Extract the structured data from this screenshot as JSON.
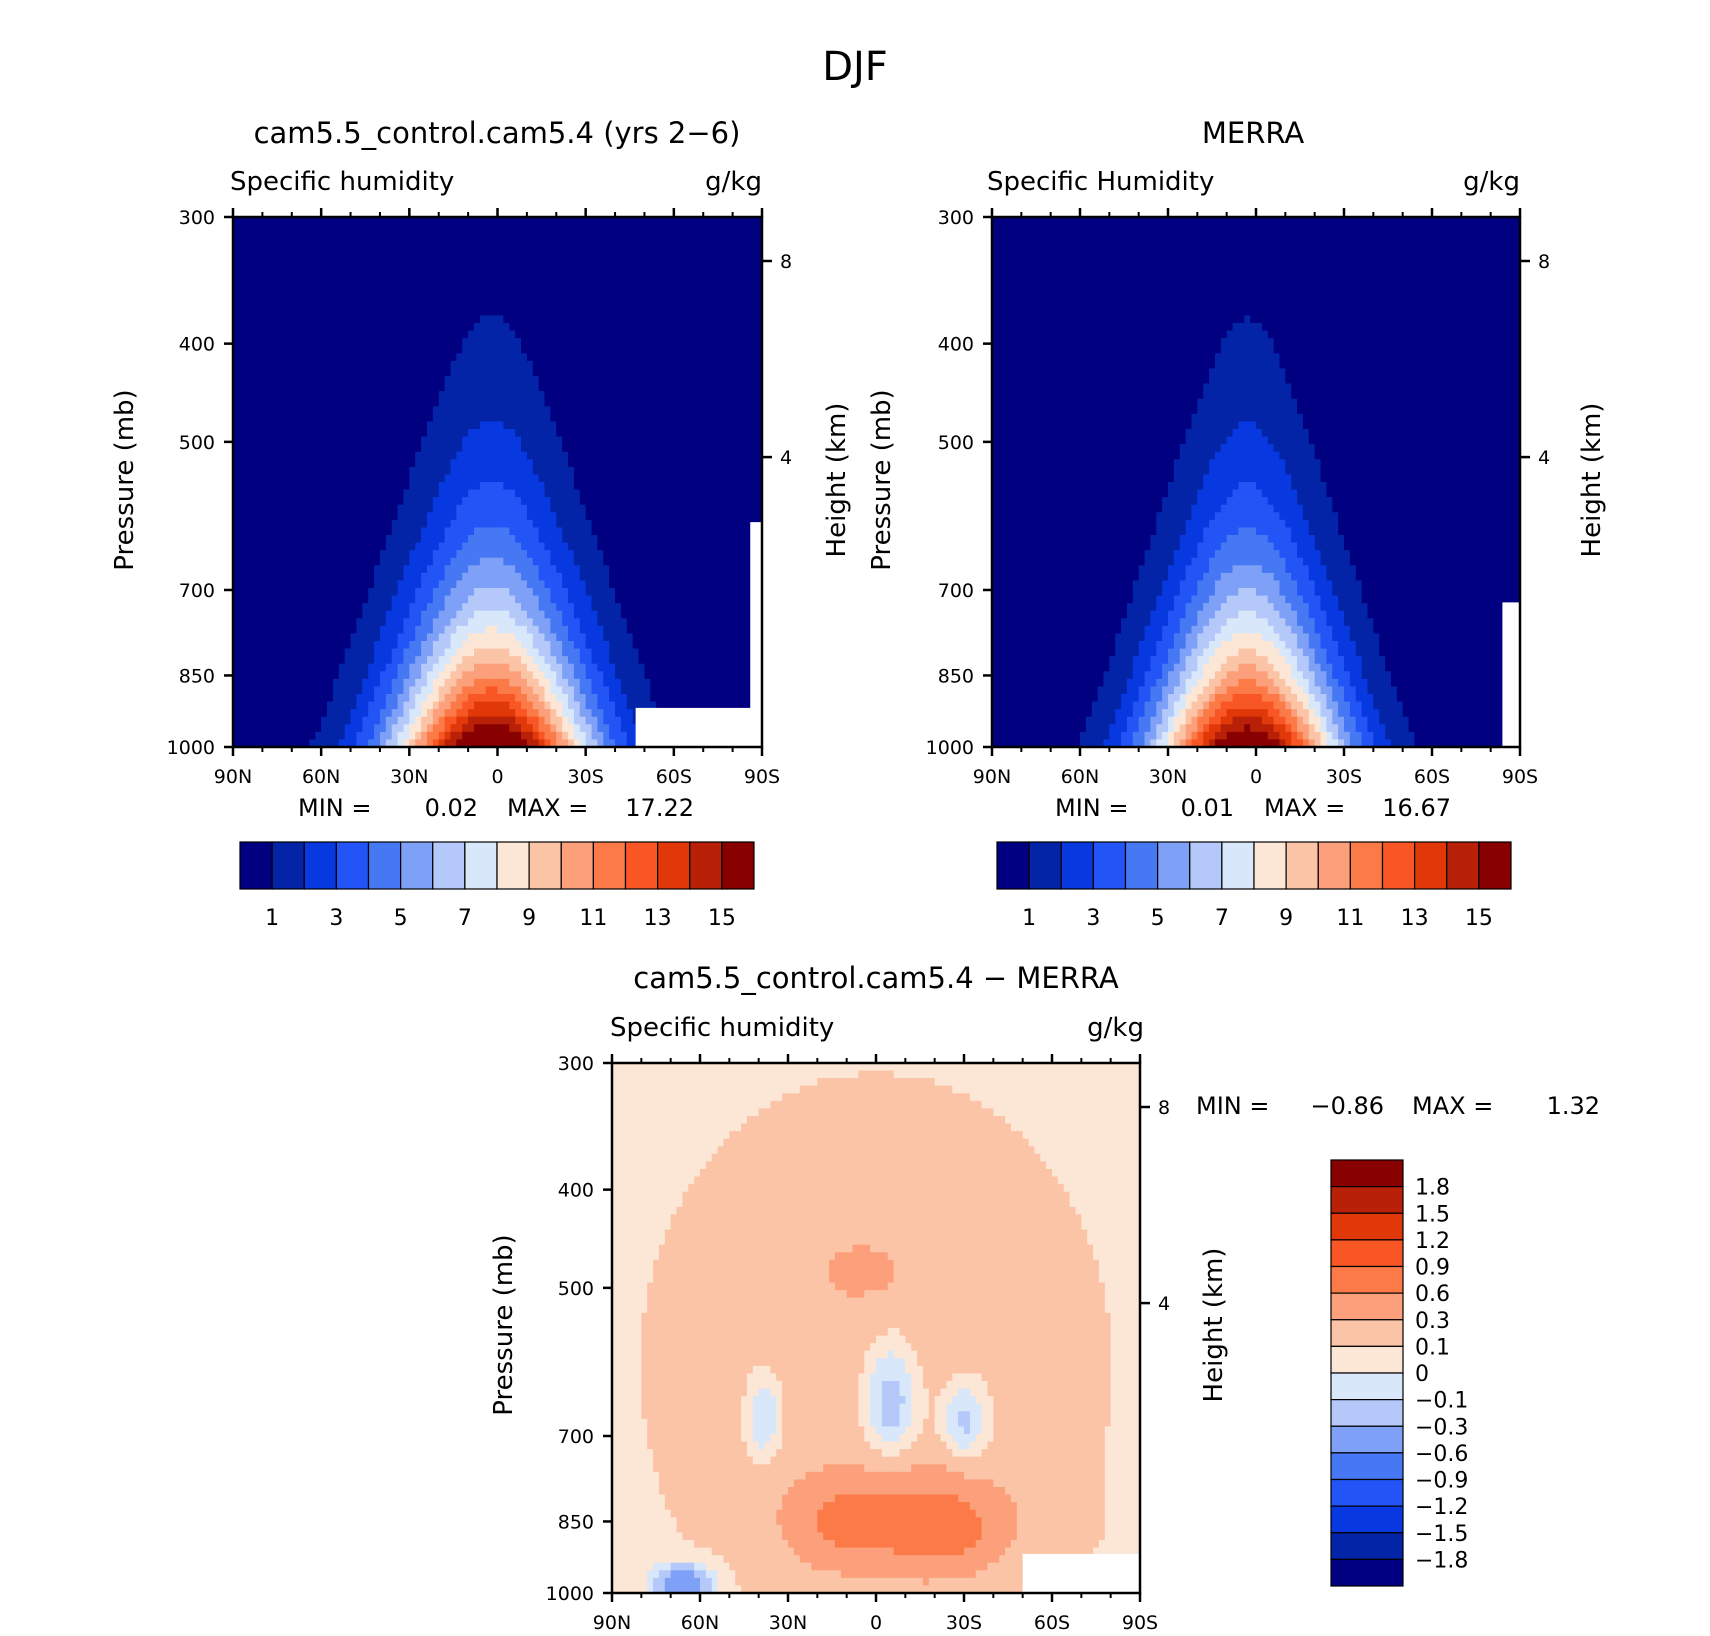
{
  "figure_title": "DJF",
  "chart_data": [
    {
      "type": "heatmap",
      "title": "cam5.5_control.cam5.4 (yrs 2−6)",
      "subtitle_left": "Specific humidity",
      "subtitle_right": "g/kg",
      "ylabel": "Pressure (mb)",
      "ylabel_right": "Height (km)",
      "x_ticks": [
        "90N",
        "60N",
        "30N",
        "0",
        "30S",
        "60S",
        "90S"
      ],
      "y_ticks": [
        300,
        400,
        500,
        700,
        850,
        1000
      ],
      "y_scale": "log",
      "ylim": [
        1000,
        300
      ],
      "height_ticks": [
        8,
        4
      ],
      "min_label": "MIN =",
      "min_value": "0.02",
      "max_label": "MAX =",
      "max_value": "17.22",
      "colorbar_orientation": "horizontal",
      "colorbar_labels": [
        "1",
        "3",
        "5",
        "7",
        "9",
        "11",
        "13",
        "15"
      ],
      "surface_mask": "white region near 60S–90S below ~920 mb",
      "field": {
        "peak_lat": 0,
        "peak_value": 17.2,
        "surface_min": 0.02
      }
    },
    {
      "type": "heatmap",
      "title": "MERRA",
      "subtitle_left": "Specific Humidity",
      "subtitle_right": "g/kg",
      "ylabel": "Pressure (mb)",
      "ylabel_right": "Height (km)",
      "x_ticks": [
        "90N",
        "60N",
        "30N",
        "0",
        "30S",
        "60S",
        "90S"
      ],
      "y_ticks": [
        300,
        400,
        500,
        700,
        850,
        1000
      ],
      "y_scale": "log",
      "ylim": [
        1000,
        300
      ],
      "height_ticks": [
        8,
        4
      ],
      "min_label": "MIN =",
      "min_value": "0.01",
      "max_label": "MAX =",
      "max_value": "16.67",
      "colorbar_orientation": "horizontal",
      "colorbar_labels": [
        "1",
        "3",
        "5",
        "7",
        "9",
        "11",
        "13",
        "15"
      ],
      "field": {
        "peak_lat": 0,
        "peak_value": 16.7,
        "surface_min": 0.01
      }
    },
    {
      "type": "heatmap",
      "title": "cam5.5_control.cam5.4 − MERRA",
      "subtitle_left": "Specific humidity",
      "subtitle_right": "g/kg",
      "ylabel": "Pressure (mb)",
      "ylabel_right": "Height (km)",
      "x_ticks": [
        "90N",
        "60N",
        "30N",
        "0",
        "30S",
        "60S",
        "90S"
      ],
      "y_ticks": [
        300,
        400,
        500,
        700,
        850,
        1000
      ],
      "y_scale": "log",
      "ylim": [
        1000,
        300
      ],
      "height_ticks": [
        8,
        4
      ],
      "min_label": "MIN =",
      "min_value": "−0.86",
      "max_label": "MAX =",
      "max_value": "1.32",
      "colorbar_orientation": "vertical",
      "colorbar_labels": [
        "1.8",
        "1.5",
        "1.2",
        "0.9",
        "0.6",
        "0.3",
        "0.1",
        "0",
        "−0.1",
        "−0.3",
        "−0.6",
        "−0.9",
        "−1.2",
        "−1.5",
        "−1.8"
      ],
      "surface_mask": "white region near 60S–90S below ~920 mb"
    }
  ],
  "colors": {
    "field_levels": [
      "#000080",
      "#0424a8",
      "#0838e0",
      "#2254f6",
      "#4678f4",
      "#7ea0f6",
      "#b4c8fa",
      "#d8e8fa",
      "#fce6d6",
      "#fcc4a6",
      "#fca07c",
      "#fc7a48",
      "#f85624",
      "#e03808",
      "#b82008",
      "#880000"
    ],
    "diff_levels": [
      "#880000",
      "#b82008",
      "#e03808",
      "#f85624",
      "#fc7a48",
      "#fca07c",
      "#fcc4a6",
      "#fce6d6",
      "#d8e8fa",
      "#b4c8fa",
      "#7ea0f6",
      "#4678f4",
      "#2254f6",
      "#0838e0",
      "#0424a8",
      "#000080"
    ]
  }
}
